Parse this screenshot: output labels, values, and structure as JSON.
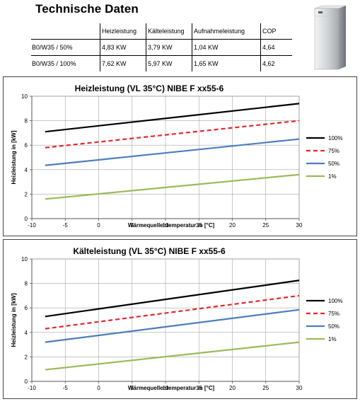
{
  "header": {
    "title": "Technische Daten"
  },
  "specs_table": {
    "columns": [
      "",
      "Heizleistung",
      "Kälteleistung",
      "Aufnahmeleistung",
      "COP"
    ],
    "rows": [
      [
        "B0/W35 / 50%",
        "4,83 KW",
        "3,79 KW",
        "1,04 KW",
        "4,64"
      ],
      [
        "B0/W35 / 100%",
        "7,62 KW",
        "5,97 KW",
        "1,65 KW",
        "4,62"
      ]
    ]
  },
  "device_image": {
    "icon": "heat-pump-unit",
    "colors": {
      "body": "#c9ccce",
      "side": "#8c8f93",
      "top": "#e6e7e8"
    }
  },
  "chart_data": [
    {
      "type": "line",
      "title": "Heizleistung (VL 35°C)  NIBE F xx55-6",
      "xlabel": "Wärmequellentemperatur in [°C]",
      "ylabel": "Heizleistung in [kW]",
      "xlim": [
        -10,
        30
      ],
      "ylim": [
        0,
        10
      ],
      "xticks": [
        -10,
        -5,
        0,
        5,
        10,
        15,
        20,
        25,
        30
      ],
      "yticks": [
        0,
        2,
        4,
        6,
        8,
        10
      ],
      "grid": true,
      "legend": "right",
      "series": [
        {
          "name": "100%",
          "color": "#000000",
          "dash": "solid",
          "x": [
            -8,
            30
          ],
          "y": [
            7.1,
            9.4
          ]
        },
        {
          "name": "75%",
          "color": "#e8262b",
          "dash": "dashed",
          "x": [
            -8,
            30
          ],
          "y": [
            5.8,
            8.0
          ]
        },
        {
          "name": "50%",
          "color": "#4a7ebf",
          "dash": "solid",
          "x": [
            -8,
            30
          ],
          "y": [
            4.35,
            6.5
          ]
        },
        {
          "name": "1%",
          "color": "#9bbb59",
          "dash": "solid",
          "x": [
            -8,
            30
          ],
          "y": [
            1.6,
            3.6
          ]
        }
      ]
    },
    {
      "type": "line",
      "title": "Kälteleistung (VL 35°C)  NIBE F xx55-6",
      "xlabel": "Wärmequellentemperatur in [°C]",
      "ylabel": "Heizleistung in [kW]",
      "xlim": [
        -10,
        30
      ],
      "ylim": [
        0,
        10
      ],
      "xticks": [
        -10,
        -5,
        0,
        5,
        10,
        15,
        20,
        25,
        30
      ],
      "yticks": [
        0,
        2,
        4,
        6,
        8,
        10
      ],
      "grid": true,
      "legend": "right",
      "series": [
        {
          "name": "100%",
          "color": "#000000",
          "dash": "solid",
          "x": [
            -8,
            30
          ],
          "y": [
            5.3,
            8.25
          ]
        },
        {
          "name": "75%",
          "color": "#e8262b",
          "dash": "dashed",
          "x": [
            -8,
            30
          ],
          "y": [
            4.3,
            7.0
          ]
        },
        {
          "name": "50%",
          "color": "#4a7ebf",
          "dash": "solid",
          "x": [
            -8,
            30
          ],
          "y": [
            3.2,
            5.85
          ]
        },
        {
          "name": "1%",
          "color": "#9bbb59",
          "dash": "solid",
          "x": [
            -8,
            30
          ],
          "y": [
            0.95,
            3.2
          ]
        }
      ]
    }
  ]
}
